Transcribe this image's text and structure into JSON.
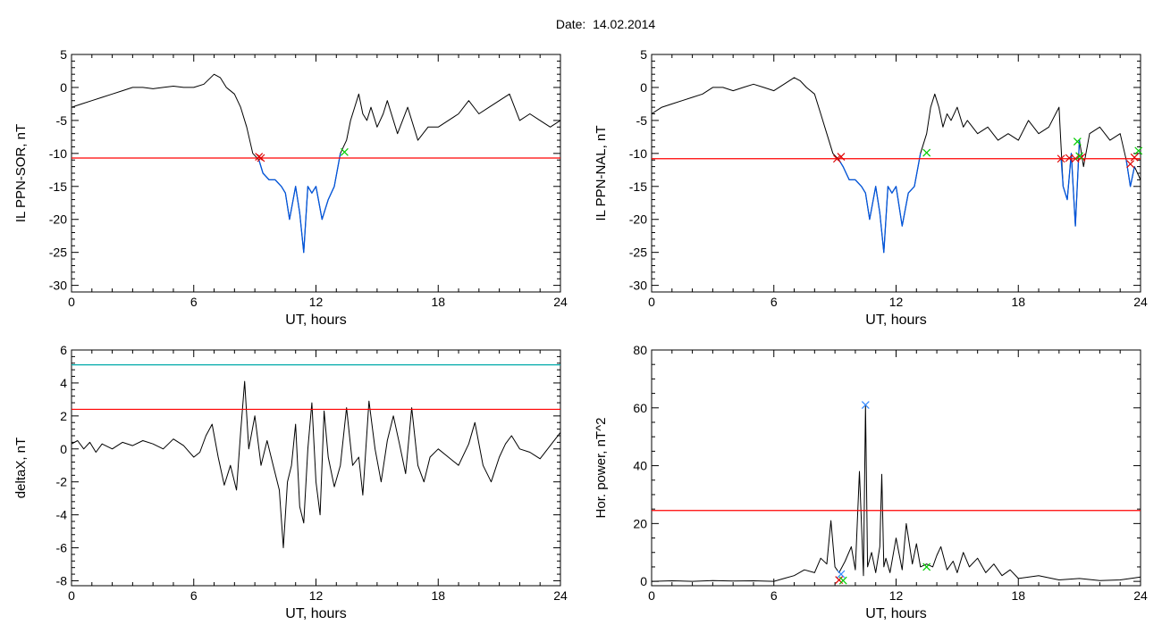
{
  "figure": {
    "title": "Date:  14.02.2014"
  },
  "colors": {
    "threshold": "#ff0000",
    "level": "#00aaaa",
    "highlight": "#0055dd",
    "start_marker": "#dd0000",
    "end_marker": "#00cc00",
    "peak_marker": "#3388ff",
    "trace": "#000000"
  },
  "chart_data": [
    {
      "id": "sor",
      "type": "line",
      "title": "",
      "xlabel": "UT, hours",
      "ylabel": "IL PPN-SOR, nT",
      "xlim": [
        0,
        24
      ],
      "ylim": [
        -31,
        5
      ],
      "xticks": [
        0,
        6,
        12,
        18,
        24
      ],
      "yticks": [
        5,
        0,
        -5,
        -10,
        -15,
        -20,
        -25,
        -30
      ],
      "grid": false,
      "series": [
        {
          "role": "trace",
          "color": "#000000",
          "x": [
            0,
            0.5,
            1,
            1.5,
            2,
            2.5,
            3,
            3.5,
            4,
            4.5,
            5,
            5.5,
            6,
            6.5,
            7,
            7.3,
            7.6,
            8,
            8.3,
            8.6,
            8.9,
            9.2,
            9.4,
            9.7,
            10,
            10.3,
            10.5,
            10.7,
            11,
            11.2,
            11.4,
            11.6,
            11.8,
            12,
            12.3,
            12.6,
            12.9,
            13.2,
            13.5,
            13.7,
            13.9,
            14.1,
            14.3,
            14.5,
            14.7,
            15,
            15.3,
            15.5,
            16,
            16.5,
            17,
            17.5,
            18,
            18.5,
            19,
            19.5,
            20,
            20.5,
            21,
            21.5,
            22,
            22.5,
            23,
            23.5,
            24
          ],
          "y": [
            -3,
            -2.5,
            -2,
            -1.5,
            -1,
            -0.5,
            0,
            0,
            -0.2,
            0,
            0.2,
            0,
            0,
            0.5,
            2,
            1.5,
            0,
            -1,
            -3,
            -6,
            -10,
            -11,
            -13,
            -14,
            -14,
            -15,
            -16,
            -20,
            -15,
            -19,
            -25,
            -15,
            -16,
            -15,
            -20,
            -17,
            -15,
            -10,
            -8,
            -5,
            -3,
            -1,
            -4,
            -5,
            -3,
            -6,
            -4,
            -2,
            -7,
            -3,
            -8,
            -6,
            -6,
            -5,
            -4,
            -2,
            -4,
            -3,
            -2,
            -1,
            -5,
            -4,
            -5,
            -6,
            -5
          ]
        },
        {
          "role": "event",
          "color": "#0055dd",
          "x": [
            9.2,
            9.4,
            9.7,
            10,
            10.3,
            10.5,
            10.7,
            11,
            11.2,
            11.4,
            11.6,
            11.8,
            12,
            12.3,
            12.6,
            12.9,
            13.2
          ],
          "y": [
            -11,
            -13,
            -14,
            -14,
            -15,
            -16,
            -20,
            -15,
            -19,
            -25,
            -15,
            -16,
            -15,
            -20,
            -17,
            -15,
            -10
          ]
        },
        {
          "role": "threshold",
          "color": "#ff0000",
          "y_constant": -10.7
        }
      ],
      "markers": [
        {
          "x": 9.2,
          "y": -10.5,
          "kind": "start"
        },
        {
          "x": 9.3,
          "y": -10.7,
          "kind": "start"
        },
        {
          "x": 13.4,
          "y": -9.8,
          "kind": "end"
        }
      ]
    },
    {
      "id": "nal",
      "type": "line",
      "title": "",
      "xlabel": "UT, hours",
      "ylabel": "IL PPN-NAL, nT",
      "xlim": [
        0,
        24
      ],
      "ylim": [
        -31,
        5
      ],
      "xticks": [
        0,
        6,
        12,
        18,
        24
      ],
      "yticks": [
        5,
        0,
        -5,
        -10,
        -15,
        -20,
        -25,
        -30
      ],
      "grid": false,
      "series": [
        {
          "role": "trace",
          "color": "#000000",
          "x": [
            0,
            0.5,
            1,
            1.5,
            2,
            2.5,
            3,
            3.5,
            4,
            4.5,
            5,
            5.5,
            6,
            6.5,
            7,
            7.3,
            7.6,
            8,
            8.3,
            8.6,
            8.9,
            9.2,
            9.4,
            9.7,
            10,
            10.3,
            10.5,
            10.7,
            11,
            11.2,
            11.4,
            11.6,
            11.8,
            12,
            12.3,
            12.6,
            12.9,
            13.2,
            13.5,
            13.7,
            13.9,
            14.1,
            14.3,
            14.5,
            14.7,
            15,
            15.3,
            15.5,
            16,
            16.5,
            17,
            17.5,
            18,
            18.5,
            19,
            19.5,
            20,
            20.2,
            20.4,
            20.6,
            20.8,
            21,
            21.2,
            21.5,
            22,
            22.5,
            23,
            23.3,
            23.5,
            23.7,
            24
          ],
          "y": [
            -4,
            -3,
            -2.5,
            -2,
            -1.5,
            -1,
            0,
            0,
            -0.5,
            0,
            0.5,
            0,
            -0.5,
            0.5,
            1.5,
            1,
            0,
            -1,
            -4,
            -7,
            -10,
            -11,
            -12,
            -14,
            -14,
            -15,
            -16,
            -20,
            -15,
            -19,
            -25,
            -15,
            -16,
            -15,
            -21,
            -16,
            -15,
            -10,
            -7,
            -3,
            -1,
            -3,
            -6,
            -4,
            -5,
            -3,
            -6,
            -5,
            -7,
            -6,
            -8,
            -7,
            -8,
            -5,
            -7,
            -6,
            -3,
            -15,
            -17,
            -10,
            -21,
            -8,
            -12,
            -7,
            -6,
            -8,
            -7,
            -11,
            -15,
            -12,
            -14
          ]
        },
        {
          "role": "event",
          "color": "#0055dd",
          "x": [
            9.2,
            9.4,
            9.7,
            10,
            10.3,
            10.5,
            10.7,
            11,
            11.2,
            11.4,
            11.6,
            11.8,
            12,
            12.3,
            12.6,
            12.9,
            13.2
          ],
          "y": [
            -11,
            -12,
            -14,
            -14,
            -15,
            -16,
            -20,
            -15,
            -19,
            -25,
            -15,
            -16,
            -15,
            -21,
            -16,
            -15,
            -10
          ]
        },
        {
          "role": "event",
          "color": "#0055dd",
          "x": [
            20.1,
            20.2,
            20.4,
            20.6,
            20.8,
            21
          ],
          "y": [
            -10.8,
            -15,
            -17,
            -10,
            -21,
            -8
          ]
        },
        {
          "role": "event",
          "color": "#0055dd",
          "x": [
            23.3,
            23.5,
            23.7
          ],
          "y": [
            -11,
            -15,
            -12
          ]
        },
        {
          "role": "threshold",
          "color": "#ff0000",
          "y_constant": -10.8
        }
      ],
      "markers": [
        {
          "x": 9.1,
          "y": -10.8,
          "kind": "start"
        },
        {
          "x": 9.3,
          "y": -10.5,
          "kind": "start"
        },
        {
          "x": 13.5,
          "y": -9.9,
          "kind": "end"
        },
        {
          "x": 20.1,
          "y": -10.8,
          "kind": "start"
        },
        {
          "x": 20.5,
          "y": -10.7,
          "kind": "start"
        },
        {
          "x": 20.8,
          "y": -10.8,
          "kind": "start"
        },
        {
          "x": 21.1,
          "y": -10.6,
          "kind": "start"
        },
        {
          "x": 20.9,
          "y": -8.2,
          "kind": "end"
        },
        {
          "x": 21.0,
          "y": -10.4,
          "kind": "end"
        },
        {
          "x": 23.5,
          "y": -11.6,
          "kind": "start"
        },
        {
          "x": 23.7,
          "y": -10.6,
          "kind": "start"
        },
        {
          "x": 23.9,
          "y": -9.6,
          "kind": "end"
        }
      ]
    },
    {
      "id": "deltax",
      "type": "line",
      "title": "",
      "xlabel": "UT, hours",
      "ylabel": "deltaX, nT",
      "xlim": [
        0,
        24
      ],
      "ylim": [
        -8.3,
        6
      ],
      "xticks": [
        0,
        6,
        12,
        18,
        24
      ],
      "yticks": [
        6,
        4,
        2,
        0,
        -2,
        -4,
        -6,
        -8
      ],
      "grid": false,
      "series": [
        {
          "role": "trace",
          "color": "#000000",
          "x": [
            0,
            0.3,
            0.6,
            0.9,
            1.2,
            1.5,
            2,
            2.5,
            3,
            3.5,
            4,
            4.5,
            5,
            5.5,
            6,
            6.3,
            6.6,
            6.9,
            7.2,
            7.5,
            7.8,
            8.1,
            8.3,
            8.5,
            8.7,
            9,
            9.3,
            9.6,
            9.9,
            10.2,
            10.4,
            10.6,
            10.8,
            11,
            11.2,
            11.4,
            11.6,
            11.8,
            12,
            12.2,
            12.4,
            12.6,
            12.9,
            13.2,
            13.5,
            13.8,
            14.1,
            14.3,
            14.6,
            14.9,
            15.2,
            15.5,
            15.8,
            16.1,
            16.4,
            16.7,
            17,
            17.3,
            17.6,
            18,
            18.5,
            19,
            19.5,
            19.8,
            20.2,
            20.6,
            21,
            21.3,
            21.6,
            22,
            22.5,
            23,
            23.5,
            24
          ],
          "y": [
            0.3,
            0.5,
            0,
            0.4,
            -0.2,
            0.3,
            0,
            0.4,
            0.2,
            0.5,
            0.3,
            0,
            0.6,
            0.2,
            -0.5,
            -0.2,
            0.8,
            1.5,
            -0.5,
            -2.2,
            -1,
            -2.5,
            1,
            4.1,
            0,
            2,
            -1,
            0.5,
            -1,
            -2.5,
            -6,
            -2,
            -1,
            1.5,
            -3.5,
            -4.5,
            0,
            2.8,
            -2,
            -4,
            2.3,
            -0.5,
            -2.3,
            -1,
            2.5,
            -1,
            -0.5,
            -2.8,
            2.9,
            0,
            -2,
            0.5,
            2,
            0.3,
            -1.5,
            2.5,
            -1,
            -2,
            -0.5,
            0,
            -0.5,
            -1,
            0.3,
            1.6,
            -1,
            -2,
            -0.5,
            0.3,
            0.8,
            0,
            -0.2,
            -0.6,
            0.2,
            1
          ]
        },
        {
          "role": "level",
          "color": "#00aaaa",
          "y_constant": 5.1
        },
        {
          "role": "threshold",
          "color": "#ff0000",
          "y_constant": 2.4
        }
      ],
      "markers": []
    },
    {
      "id": "power",
      "type": "line",
      "title": "",
      "xlabel": "UT, hours",
      "ylabel": "Hor. power, nT^2",
      "xlim": [
        0,
        24
      ],
      "ylim": [
        -1.5,
        80
      ],
      "xticks": [
        0,
        6,
        12,
        18,
        24
      ],
      "yticks": [
        80,
        60,
        40,
        20,
        0
      ],
      "grid": false,
      "series": [
        {
          "role": "trace",
          "color": "#000000",
          "x": [
            0,
            1,
            2,
            3,
            4,
            5,
            6,
            6.5,
            7,
            7.5,
            8,
            8.3,
            8.6,
            8.8,
            9,
            9.2,
            9.5,
            9.8,
            10,
            10.2,
            10.4,
            10.5,
            10.6,
            10.8,
            11,
            11.2,
            11.3,
            11.4,
            11.5,
            11.7,
            12,
            12.3,
            12.5,
            12.8,
            13,
            13.2,
            13.5,
            13.8,
            14,
            14.2,
            14.5,
            14.8,
            15,
            15.3,
            15.6,
            16,
            16.4,
            16.8,
            17.2,
            17.6,
            18,
            19,
            20,
            21,
            22,
            23,
            24
          ],
          "y": [
            0,
            0.2,
            0,
            0.3,
            0.1,
            0.2,
            0,
            1,
            2,
            4,
            3,
            8,
            6,
            21,
            5,
            3,
            7,
            12,
            4,
            38,
            2,
            61,
            5,
            10,
            3,
            12,
            37,
            5,
            8,
            3,
            15,
            4,
            20,
            6,
            13,
            5,
            6,
            5,
            9,
            12,
            4,
            7,
            3,
            10,
            5,
            8,
            3,
            6,
            2,
            4,
            1,
            2,
            0.5,
            1,
            0.3,
            0.5,
            1.5
          ]
        },
        {
          "role": "threshold",
          "color": "#ff0000",
          "y_constant": 24.5
        }
      ],
      "markers": [
        {
          "x": 9.2,
          "y": 0.5,
          "kind": "start"
        },
        {
          "x": 9.4,
          "y": 0.3,
          "kind": "end"
        },
        {
          "x": 9.3,
          "y": 2.5,
          "kind": "peak"
        },
        {
          "x": 10.5,
          "y": 61,
          "kind": "peak"
        },
        {
          "x": 13.5,
          "y": 5,
          "kind": "end"
        }
      ]
    }
  ]
}
